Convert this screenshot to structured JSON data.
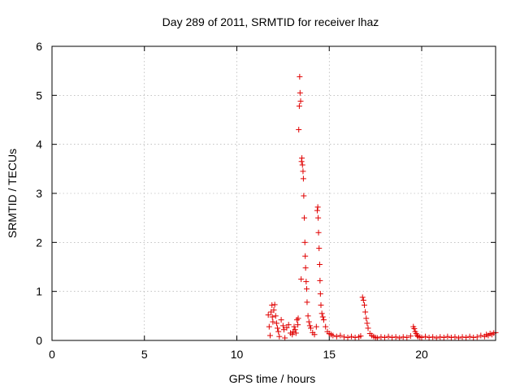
{
  "chart_data": {
    "type": "scatter",
    "title": "Day 289 of 2011, SRMTID for receiver lhaz",
    "xlabel": "GPS time / hours",
    "ylabel": "SRMTID / TECUs",
    "xlim": [
      0,
      24
    ],
    "ylim": [
      0,
      6
    ],
    "xticks": [
      "0",
      "5",
      "10",
      "15",
      "20"
    ],
    "xtick_values": [
      0,
      5,
      10,
      15,
      20
    ],
    "yticks": [
      "0",
      "1",
      "2",
      "3",
      "4",
      "5",
      "6"
    ],
    "ytick_values": [
      0,
      1,
      2,
      3,
      4,
      5,
      6
    ],
    "grid": true,
    "marker": "plus",
    "series": [
      {
        "color": "#e00000",
        "x": [
          11.7,
          11.75,
          11.8,
          11.85,
          11.9,
          11.92,
          11.95,
          12.0,
          12.05,
          12.1,
          12.15,
          12.2,
          12.25,
          12.3,
          12.4,
          12.5,
          12.55,
          12.6,
          12.7,
          12.8,
          12.9,
          13.0,
          13.05,
          13.1,
          13.15,
          13.2,
          13.25,
          13.3,
          13.32,
          13.35,
          13.38,
          13.4,
          13.42,
          13.45,
          13.48,
          13.5,
          13.52,
          13.55,
          13.58,
          13.6,
          13.62,
          13.65,
          13.68,
          13.7,
          13.72,
          13.75,
          13.78,
          13.8,
          13.85,
          13.9,
          13.95,
          14.0,
          14.1,
          14.2,
          14.3,
          14.35,
          14.38,
          14.4,
          14.42,
          14.45,
          14.48,
          14.5,
          14.52,
          14.55,
          14.6,
          14.65,
          14.7,
          14.8,
          14.9,
          15.0,
          15.1,
          15.2,
          15.4,
          15.6,
          15.8,
          16.0,
          16.2,
          16.4,
          16.6,
          16.7,
          16.8,
          16.85,
          16.9,
          16.95,
          17.0,
          17.05,
          17.1,
          17.2,
          17.3,
          17.4,
          17.5,
          17.6,
          17.8,
          18.0,
          18.2,
          18.4,
          18.6,
          18.8,
          19.0,
          19.2,
          19.4,
          19.55,
          19.6,
          19.65,
          19.7,
          19.75,
          19.8,
          19.9,
          20.0,
          20.2,
          20.4,
          20.6,
          20.8,
          21.0,
          21.2,
          21.4,
          21.6,
          21.8,
          22.0,
          22.2,
          22.4,
          22.6,
          22.8,
          23.0,
          23.2,
          23.4,
          23.5,
          23.6,
          23.7,
          23.8,
          23.9,
          24.0
        ],
        "y": [
          0.52,
          0.28,
          0.1,
          0.58,
          0.72,
          0.48,
          0.38,
          0.62,
          0.73,
          0.5,
          0.35,
          0.25,
          0.18,
          0.08,
          0.42,
          0.3,
          0.22,
          0.05,
          0.26,
          0.32,
          0.15,
          0.12,
          0.18,
          0.28,
          0.22,
          0.15,
          0.42,
          0.32,
          0.45,
          4.3,
          4.78,
          5.38,
          5.05,
          4.88,
          1.25,
          3.65,
          3.72,
          3.58,
          3.45,
          3.3,
          2.95,
          2.5,
          2.0,
          1.72,
          1.48,
          1.2,
          1.05,
          0.78,
          0.5,
          0.38,
          0.3,
          0.25,
          0.16,
          0.12,
          0.28,
          2.65,
          2.72,
          2.5,
          2.2,
          1.88,
          1.55,
          1.22,
          0.95,
          0.72,
          0.55,
          0.48,
          0.42,
          0.28,
          0.18,
          0.14,
          0.12,
          0.1,
          0.08,
          0.1,
          0.07,
          0.06,
          0.08,
          0.06,
          0.07,
          0.09,
          0.88,
          0.82,
          0.72,
          0.58,
          0.45,
          0.35,
          0.25,
          0.14,
          0.1,
          0.08,
          0.06,
          0.05,
          0.07,
          0.06,
          0.08,
          0.06,
          0.07,
          0.05,
          0.07,
          0.06,
          0.09,
          0.28,
          0.24,
          0.18,
          0.14,
          0.1,
          0.08,
          0.07,
          0.06,
          0.08,
          0.06,
          0.07,
          0.05,
          0.07,
          0.06,
          0.08,
          0.06,
          0.07,
          0.05,
          0.07,
          0.06,
          0.08,
          0.06,
          0.07,
          0.1,
          0.08,
          0.12,
          0.1,
          0.14,
          0.12,
          0.15,
          0.16
        ]
      }
    ]
  }
}
